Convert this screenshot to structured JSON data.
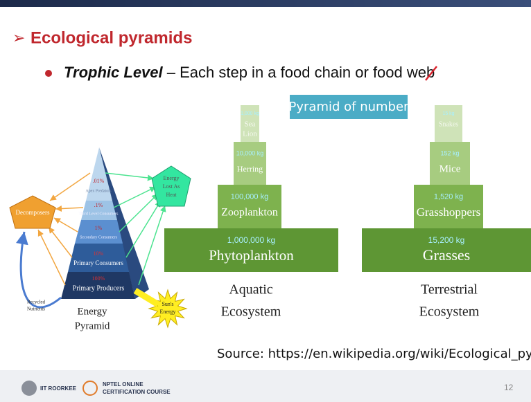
{
  "header": {
    "title": "Ecological pyramids"
  },
  "bullet": {
    "term": "Trophic Level",
    "text": " – Each step in a food chain or food web"
  },
  "pyramid_label": "Pyramid of number",
  "energy_pyramid": {
    "levels": [
      {
        "percent": ".01%",
        "name": "Apex Predators"
      },
      {
        "percent": ".1%",
        "name": "Third Level Consumers"
      },
      {
        "percent": "1%",
        "name": "Secondary Consumers"
      },
      {
        "percent": "10%",
        "name": "Primary Consumers"
      },
      {
        "percent": "100%",
        "name": "Primary Producers"
      }
    ],
    "decomposers": "Decomposers",
    "heat": [
      "Energy",
      "Lost As",
      "Heat"
    ],
    "sun": [
      "Sun's",
      "Energy"
    ],
    "recycled": [
      "Recycled",
      "Nutrients"
    ],
    "caption": [
      "Energy",
      "Pyramid"
    ]
  },
  "aquatic": {
    "levels": [
      {
        "value": "1,000 kg",
        "name": [
          "Sea",
          "Lion"
        ]
      },
      {
        "value": "10,000 kg",
        "name": [
          "Herring"
        ]
      },
      {
        "value": "100,000 kg",
        "name": [
          "Zooplankton"
        ]
      },
      {
        "value": "1,000,000 kg",
        "name": [
          "Phytoplankton"
        ]
      }
    ],
    "caption": [
      "Aquatic",
      "Ecosystem"
    ]
  },
  "terrestrial": {
    "levels": [
      {
        "value": "15 kg",
        "name": [
          "Snakes"
        ]
      },
      {
        "value": "152 kg",
        "name": [
          "Mice"
        ]
      },
      {
        "value": "1,520 kg",
        "name": [
          "Grasshoppers"
        ]
      },
      {
        "value": "15,200 kg",
        "name": [
          "Grasses"
        ]
      }
    ],
    "caption": [
      "Terrestrial",
      "Ecosystem"
    ]
  },
  "source": "Source: https://en.wikipedia.org/wiki/Ecological_pyramid",
  "footer": {
    "institute": "IIT ROORKEE",
    "course": [
      "NPTEL ONLINE",
      "CERTIFICATION COURSE"
    ],
    "page": "12"
  }
}
